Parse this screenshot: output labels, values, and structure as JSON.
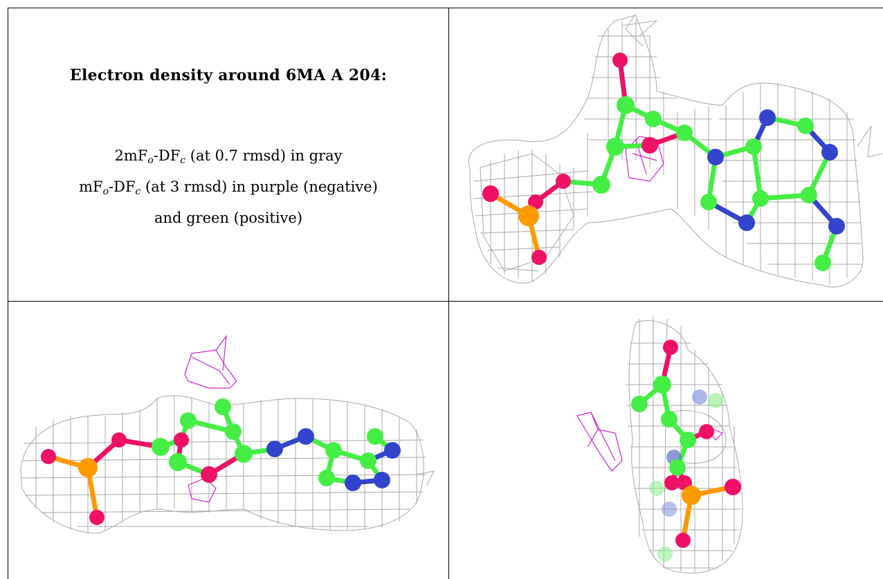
{
  "panel_text": {
    "title": "Electron density around 6MA A 204:",
    "legend_line1": {
      "prefix": "2mF",
      "sub1": "o",
      "mid": "-DF",
      "sub2": "c",
      "suffix": " (at 0.7 rmsd) in gray"
    },
    "legend_line2": {
      "prefix": "mF",
      "sub1": "o",
      "mid": "-DF",
      "sub2": "c",
      "suffix": " (at 3 rmsd) in purple (negative)"
    },
    "legend_line3": "and green (positive)"
  },
  "colors": {
    "mesh_gray": "#9a9a9a",
    "negative_density": "#cc22cc",
    "carbon": "#44ee44",
    "nitrogen": "#3344cc",
    "oxygen": "#ee1166",
    "phosphorus": "#ff9900",
    "grid_line": "#000000"
  },
  "views": {
    "top_right": "molecule-view-top",
    "bottom_left": "molecule-view-side",
    "bottom_right": "molecule-view-end"
  }
}
